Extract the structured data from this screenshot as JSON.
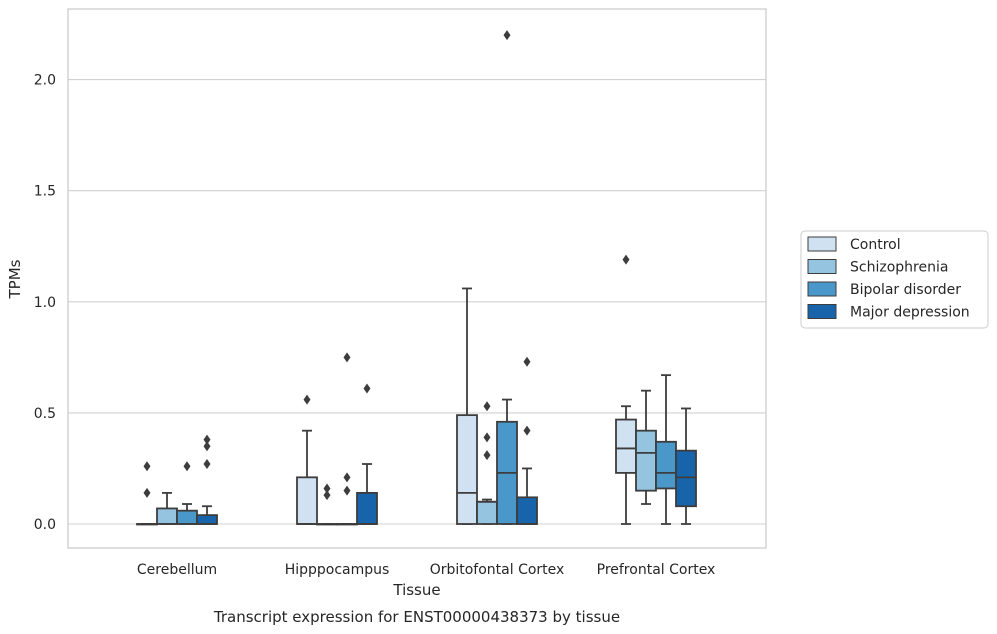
{
  "chart_data": {
    "type": "box",
    "title": "Transcript expression for ENST00000438373 by tissue",
    "xlabel": "Tissue",
    "ylabel": "TPMs",
    "ylim": [
      -0.11,
      2.33
    ],
    "yticks": [
      "0.0",
      "0.5",
      "1.0",
      "1.5",
      "2.0"
    ],
    "ytick_values": [
      0.0,
      0.5,
      1.0,
      1.5,
      2.0
    ],
    "grid": "horizontal",
    "legend_position": "right",
    "categories": [
      "Cerebellum",
      "Hipppocampus",
      "Orbitofontal Cortex",
      "Prefrontal Cortex"
    ],
    "series": [
      {
        "name": "Control",
        "color": "#d0e1f2",
        "boxes": [
          {
            "q1": 0.0,
            "median": 0.0,
            "q3": 0.0,
            "whisker_low": 0.0,
            "whisker_high": 0.0,
            "outliers": [
              0.26,
              0.14
            ]
          },
          {
            "q1": 0.0,
            "median": 0.0,
            "q3": 0.21,
            "whisker_low": 0.0,
            "whisker_high": 0.42,
            "outliers": [
              0.56
            ]
          },
          {
            "q1": 0.0,
            "median": 0.14,
            "q3": 0.49,
            "whisker_low": 0.0,
            "whisker_high": 1.06,
            "outliers": []
          },
          {
            "q1": 0.23,
            "median": 0.34,
            "q3": 0.47,
            "whisker_low": 0.0,
            "whisker_high": 0.53,
            "outliers": [
              1.19
            ]
          }
        ]
      },
      {
        "name": "Schizophrenia",
        "color": "#94c4df",
        "boxes": [
          {
            "q1": 0.0,
            "median": 0.0,
            "q3": 0.07,
            "whisker_low": 0.0,
            "whisker_high": 0.14,
            "outliers": []
          },
          {
            "q1": 0.0,
            "median": 0.0,
            "q3": 0.0,
            "whisker_low": 0.0,
            "whisker_high": 0.0,
            "outliers": [
              0.16,
              0.13
            ]
          },
          {
            "q1": 0.0,
            "median": 0.1,
            "q3": 0.1,
            "whisker_low": 0.0,
            "whisker_high": 0.11,
            "outliers": [
              0.53,
              0.39,
              0.31
            ]
          },
          {
            "q1": 0.15,
            "median": 0.32,
            "q3": 0.42,
            "whisker_low": 0.09,
            "whisker_high": 0.6,
            "outliers": []
          }
        ]
      },
      {
        "name": "Bipolar disorder",
        "color": "#4a98c9",
        "boxes": [
          {
            "q1": 0.0,
            "median": 0.0,
            "q3": 0.06,
            "whisker_low": 0.0,
            "whisker_high": 0.09,
            "outliers": [
              0.26
            ]
          },
          {
            "q1": 0.0,
            "median": 0.0,
            "q3": 0.0,
            "whisker_low": 0.0,
            "whisker_high": 0.0,
            "outliers": [
              0.75,
              0.21,
              0.15
            ]
          },
          {
            "q1": 0.0,
            "median": 0.23,
            "q3": 0.46,
            "whisker_low": 0.0,
            "whisker_high": 0.56,
            "outliers": [
              2.2
            ]
          },
          {
            "q1": 0.16,
            "median": 0.23,
            "q3": 0.37,
            "whisker_low": 0.0,
            "whisker_high": 0.67,
            "outliers": []
          }
        ]
      },
      {
        "name": "Major depression",
        "color": "#1764ab",
        "boxes": [
          {
            "q1": 0.0,
            "median": 0.0,
            "q3": 0.04,
            "whisker_low": 0.0,
            "whisker_high": 0.08,
            "outliers": [
              0.38,
              0.35,
              0.27
            ]
          },
          {
            "q1": 0.0,
            "median": 0.0,
            "q3": 0.14,
            "whisker_low": 0.0,
            "whisker_high": 0.27,
            "outliers": [
              0.61
            ]
          },
          {
            "q1": 0.0,
            "median": 0.0,
            "q3": 0.12,
            "whisker_low": 0.0,
            "whisker_high": 0.25,
            "outliers": [
              0.73,
              0.42
            ]
          },
          {
            "q1": 0.08,
            "median": 0.21,
            "q3": 0.33,
            "whisker_low": 0.0,
            "whisker_high": 0.52,
            "outliers": []
          }
        ]
      }
    ]
  }
}
